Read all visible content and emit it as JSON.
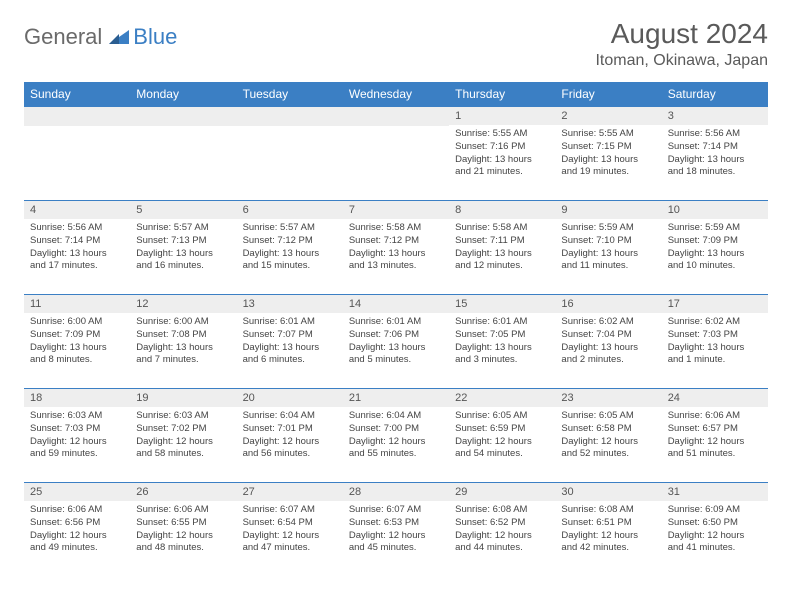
{
  "logo": {
    "part1": "General",
    "part2": "Blue"
  },
  "title": "August 2024",
  "location": "Itoman, Okinawa, Japan",
  "colors": {
    "header_bg": "#3b7fc4",
    "header_text": "#ffffff",
    "daynum_bg": "#eeeeee",
    "border": "#3b7fc4",
    "body_text": "#444444",
    "title_text": "#5a5a5a"
  },
  "day_headers": [
    "Sunday",
    "Monday",
    "Tuesday",
    "Wednesday",
    "Thursday",
    "Friday",
    "Saturday"
  ],
  "weeks": [
    [
      null,
      null,
      null,
      null,
      {
        "n": "1",
        "sunrise": "5:55 AM",
        "sunset": "7:16 PM",
        "dl": "13 hours and 21 minutes."
      },
      {
        "n": "2",
        "sunrise": "5:55 AM",
        "sunset": "7:15 PM",
        "dl": "13 hours and 19 minutes."
      },
      {
        "n": "3",
        "sunrise": "5:56 AM",
        "sunset": "7:14 PM",
        "dl": "13 hours and 18 minutes."
      }
    ],
    [
      {
        "n": "4",
        "sunrise": "5:56 AM",
        "sunset": "7:14 PM",
        "dl": "13 hours and 17 minutes."
      },
      {
        "n": "5",
        "sunrise": "5:57 AM",
        "sunset": "7:13 PM",
        "dl": "13 hours and 16 minutes."
      },
      {
        "n": "6",
        "sunrise": "5:57 AM",
        "sunset": "7:12 PM",
        "dl": "13 hours and 15 minutes."
      },
      {
        "n": "7",
        "sunrise": "5:58 AM",
        "sunset": "7:12 PM",
        "dl": "13 hours and 13 minutes."
      },
      {
        "n": "8",
        "sunrise": "5:58 AM",
        "sunset": "7:11 PM",
        "dl": "13 hours and 12 minutes."
      },
      {
        "n": "9",
        "sunrise": "5:59 AM",
        "sunset": "7:10 PM",
        "dl": "13 hours and 11 minutes."
      },
      {
        "n": "10",
        "sunrise": "5:59 AM",
        "sunset": "7:09 PM",
        "dl": "13 hours and 10 minutes."
      }
    ],
    [
      {
        "n": "11",
        "sunrise": "6:00 AM",
        "sunset": "7:09 PM",
        "dl": "13 hours and 8 minutes."
      },
      {
        "n": "12",
        "sunrise": "6:00 AM",
        "sunset": "7:08 PM",
        "dl": "13 hours and 7 minutes."
      },
      {
        "n": "13",
        "sunrise": "6:01 AM",
        "sunset": "7:07 PM",
        "dl": "13 hours and 6 minutes."
      },
      {
        "n": "14",
        "sunrise": "6:01 AM",
        "sunset": "7:06 PM",
        "dl": "13 hours and 5 minutes."
      },
      {
        "n": "15",
        "sunrise": "6:01 AM",
        "sunset": "7:05 PM",
        "dl": "13 hours and 3 minutes."
      },
      {
        "n": "16",
        "sunrise": "6:02 AM",
        "sunset": "7:04 PM",
        "dl": "13 hours and 2 minutes."
      },
      {
        "n": "17",
        "sunrise": "6:02 AM",
        "sunset": "7:03 PM",
        "dl": "13 hours and 1 minute."
      }
    ],
    [
      {
        "n": "18",
        "sunrise": "6:03 AM",
        "sunset": "7:03 PM",
        "dl": "12 hours and 59 minutes."
      },
      {
        "n": "19",
        "sunrise": "6:03 AM",
        "sunset": "7:02 PM",
        "dl": "12 hours and 58 minutes."
      },
      {
        "n": "20",
        "sunrise": "6:04 AM",
        "sunset": "7:01 PM",
        "dl": "12 hours and 56 minutes."
      },
      {
        "n": "21",
        "sunrise": "6:04 AM",
        "sunset": "7:00 PM",
        "dl": "12 hours and 55 minutes."
      },
      {
        "n": "22",
        "sunrise": "6:05 AM",
        "sunset": "6:59 PM",
        "dl": "12 hours and 54 minutes."
      },
      {
        "n": "23",
        "sunrise": "6:05 AM",
        "sunset": "6:58 PM",
        "dl": "12 hours and 52 minutes."
      },
      {
        "n": "24",
        "sunrise": "6:06 AM",
        "sunset": "6:57 PM",
        "dl": "12 hours and 51 minutes."
      }
    ],
    [
      {
        "n": "25",
        "sunrise": "6:06 AM",
        "sunset": "6:56 PM",
        "dl": "12 hours and 49 minutes."
      },
      {
        "n": "26",
        "sunrise": "6:06 AM",
        "sunset": "6:55 PM",
        "dl": "12 hours and 48 minutes."
      },
      {
        "n": "27",
        "sunrise": "6:07 AM",
        "sunset": "6:54 PM",
        "dl": "12 hours and 47 minutes."
      },
      {
        "n": "28",
        "sunrise": "6:07 AM",
        "sunset": "6:53 PM",
        "dl": "12 hours and 45 minutes."
      },
      {
        "n": "29",
        "sunrise": "6:08 AM",
        "sunset": "6:52 PM",
        "dl": "12 hours and 44 minutes."
      },
      {
        "n": "30",
        "sunrise": "6:08 AM",
        "sunset": "6:51 PM",
        "dl": "12 hours and 42 minutes."
      },
      {
        "n": "31",
        "sunrise": "6:09 AM",
        "sunset": "6:50 PM",
        "dl": "12 hours and 41 minutes."
      }
    ]
  ],
  "labels": {
    "sunrise": "Sunrise:",
    "sunset": "Sunset:",
    "daylight": "Daylight:"
  }
}
